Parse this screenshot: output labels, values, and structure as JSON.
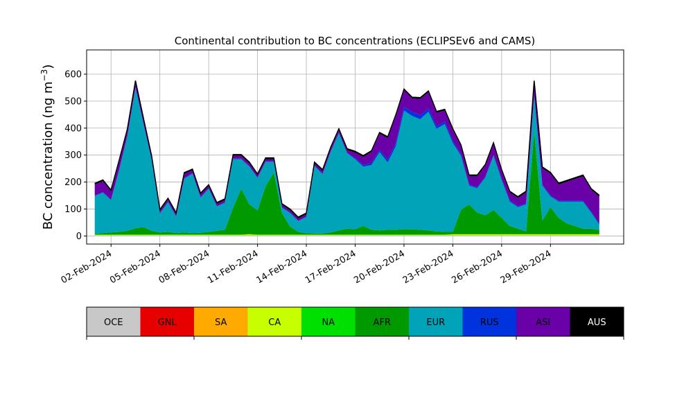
{
  "chart_data": {
    "type": "area",
    "stacked": true,
    "title": "Continental contribution to BC concentrations (ECLIPSEv6 and CAMS)",
    "ylabel_main": "BC concentration (ng m",
    "ylabel_sup": "−3",
    "ylabel_close": ")",
    "xlabel": "",
    "ylim": [
      -30,
      690
    ],
    "xlim": [
      "2024-01-31T12:00",
      "2024-03-04T12:00"
    ],
    "grid": true,
    "yticks": [
      0,
      100,
      200,
      300,
      400,
      500,
      600
    ],
    "ytick_labels": [
      "0",
      "100",
      "200",
      "300",
      "400",
      "500",
      "600"
    ],
    "xticks": [
      "2024-02-02",
      "2024-02-05",
      "2024-02-08",
      "2024-02-11",
      "2024-02-14",
      "2024-02-17",
      "2024-02-20",
      "2024-02-23",
      "2024-02-26",
      "2024-02-29"
    ],
    "xtick_labels": [
      "02-Feb-2024",
      "05-Feb-2024",
      "08-Feb-2024",
      "11-Feb-2024",
      "14-Feb-2024",
      "17-Feb-2024",
      "20-Feb-2024",
      "23-Feb-2024",
      "26-Feb-2024",
      "29-Feb-2024"
    ],
    "x": [
      "2024-02-01T00:00",
      "2024-02-01T12:00",
      "2024-02-02T00:00",
      "2024-02-02T12:00",
      "2024-02-03T00:00",
      "2024-02-03T12:00",
      "2024-02-04T00:00",
      "2024-02-04T12:00",
      "2024-02-05T00:00",
      "2024-02-05T12:00",
      "2024-02-06T00:00",
      "2024-02-06T12:00",
      "2024-02-07T00:00",
      "2024-02-07T12:00",
      "2024-02-08T00:00",
      "2024-02-08T12:00",
      "2024-02-09T00:00",
      "2024-02-09T12:00",
      "2024-02-10T00:00",
      "2024-02-10T12:00",
      "2024-02-11T00:00",
      "2024-02-11T12:00",
      "2024-02-12T00:00",
      "2024-02-12T12:00",
      "2024-02-13T00:00",
      "2024-02-13T12:00",
      "2024-02-14T00:00",
      "2024-02-14T12:00",
      "2024-02-15T00:00",
      "2024-02-15T12:00",
      "2024-02-16T00:00",
      "2024-02-16T12:00",
      "2024-02-17T00:00",
      "2024-02-17T12:00",
      "2024-02-18T00:00",
      "2024-02-18T12:00",
      "2024-02-19T00:00",
      "2024-02-19T12:00",
      "2024-02-20T00:00",
      "2024-02-20T12:00",
      "2024-02-21T00:00",
      "2024-02-21T12:00",
      "2024-02-22T00:00",
      "2024-02-22T12:00",
      "2024-02-23T00:00",
      "2024-02-23T12:00",
      "2024-02-24T00:00",
      "2024-02-24T12:00",
      "2024-02-25T00:00",
      "2024-02-25T12:00",
      "2024-02-26T00:00",
      "2024-02-26T12:00",
      "2024-02-27T00:00",
      "2024-02-27T12:00",
      "2024-02-28T00:00",
      "2024-02-28T12:00",
      "2024-02-29T00:00",
      "2024-02-29T12:00",
      "2024-03-01T00:00",
      "2024-03-01T12:00",
      "2024-03-02T00:00",
      "2024-03-02T12:00",
      "2024-03-03T00:00"
    ],
    "series": [
      {
        "name": "OCE",
        "color": "#c8c8c8",
        "values": [
          1,
          1,
          1,
          1,
          1,
          1,
          1,
          1,
          1,
          1,
          1,
          1,
          1,
          1,
          1,
          1,
          1,
          1,
          1,
          1,
          1,
          1,
          1,
          1,
          1,
          1,
          1,
          1,
          1,
          1,
          1,
          1,
          1,
          1,
          1,
          1,
          1,
          1,
          1,
          1,
          1,
          1,
          1,
          1,
          1,
          1,
          1,
          1,
          1,
          1,
          1,
          1,
          1,
          1,
          1,
          1,
          1,
          1,
          1,
          1,
          1,
          1,
          1
        ]
      },
      {
        "name": "GNL",
        "color": "#e60000",
        "values": [
          0,
          0,
          0,
          0,
          0,
          0,
          0,
          0,
          0,
          0,
          0,
          0,
          0,
          0,
          0,
          0,
          0,
          0,
          0,
          0,
          0,
          0,
          0,
          0,
          0,
          0,
          0,
          0,
          0,
          0,
          0,
          0,
          0,
          0,
          0,
          0,
          0,
          0,
          0,
          0,
          0,
          0,
          0,
          0,
          0,
          0,
          0,
          0,
          0,
          0,
          0,
          0,
          0,
          0,
          0,
          0,
          0,
          0,
          0,
          0,
          0,
          0,
          0
        ]
      },
      {
        "name": "SA",
        "color": "#ffaa00",
        "values": [
          1,
          1,
          1,
          1,
          1,
          1,
          1,
          1,
          1,
          1,
          1,
          1,
          1,
          1,
          1,
          1,
          1,
          1,
          1,
          2,
          1,
          1,
          1,
          1,
          1,
          1,
          1,
          1,
          1,
          1,
          1,
          1,
          1,
          1,
          1,
          1,
          1,
          1,
          1,
          1,
          1,
          1,
          1,
          1,
          2,
          2,
          2,
          2,
          2,
          2,
          2,
          2,
          2,
          2,
          2,
          2,
          2,
          2,
          2,
          2,
          2,
          2,
          2
        ]
      },
      {
        "name": "CA",
        "color": "#c8ff00",
        "values": [
          2,
          2,
          2,
          2,
          2,
          2,
          2,
          2,
          2,
          2,
          2,
          2,
          2,
          2,
          2,
          2,
          2,
          2,
          2,
          3,
          2,
          2,
          2,
          2,
          2,
          2,
          2,
          2,
          2,
          2,
          2,
          2,
          2,
          2,
          2,
          2,
          2,
          2,
          2,
          2,
          2,
          2,
          2,
          2,
          3,
          3,
          3,
          3,
          3,
          3,
          3,
          3,
          3,
          3,
          3,
          3,
          3,
          3,
          3,
          3,
          3,
          3,
          3
        ]
      },
      {
        "name": "NA",
        "color": "#00e000",
        "values": [
          1,
          1,
          1,
          1,
          1,
          1,
          1,
          1,
          1,
          1,
          1,
          1,
          1,
          1,
          1,
          1,
          1,
          1,
          1,
          1,
          1,
          1,
          1,
          1,
          1,
          1,
          1,
          1,
          1,
          1,
          1,
          1,
          1,
          1,
          1,
          1,
          1,
          1,
          1,
          1,
          1,
          1,
          1,
          1,
          1,
          1,
          1,
          1,
          1,
          1,
          1,
          1,
          1,
          1,
          1,
          1,
          1,
          1,
          1,
          1,
          1,
          1,
          1
        ]
      },
      {
        "name": "AFR",
        "color": "#009a00",
        "values": [
          3,
          6,
          8,
          10,
          14,
          24,
          28,
          14,
          8,
          10,
          6,
          8,
          6,
          7,
          10,
          14,
          18,
          100,
          170,
          110,
          90,
          180,
          230,
          80,
          30,
          10,
          5,
          4,
          4,
          8,
          16,
          22,
          20,
          32,
          18,
          16,
          18,
          18,
          20,
          20,
          18,
          16,
          12,
          10,
          8,
          90,
          110,
          80,
          70,
          90,
          60,
          30,
          20,
          10,
          380,
          50,
          100,
          60,
          40,
          30,
          20,
          20,
          15
        ]
      },
      {
        "name": "EUR",
        "color": "#00a3b8",
        "values": [
          140,
          150,
          120,
          230,
          350,
          520,
          380,
          260,
          70,
          110,
          60,
          200,
          220,
          130,
          160,
          90,
          100,
          180,
          110,
          140,
          120,
          90,
          40,
          20,
          50,
          40,
          60,
          250,
          220,
          300,
          360,
          280,
          260,
          220,
          240,
          290,
          250,
          310,
          440,
          420,
          410,
          440,
          380,
          400,
          330,
          200,
          70,
          90,
          140,
          200,
          140,
          90,
          80,
          100,
          130,
          130,
          40,
          60,
          80,
          90,
          100,
          60,
          20
        ]
      },
      {
        "name": "RUS",
        "color": "#0033dd",
        "values": [
          2,
          2,
          2,
          2,
          2,
          2,
          2,
          2,
          2,
          2,
          2,
          2,
          2,
          2,
          2,
          2,
          2,
          2,
          2,
          2,
          2,
          2,
          2,
          2,
          2,
          2,
          2,
          2,
          2,
          2,
          2,
          2,
          4,
          6,
          8,
          8,
          10,
          12,
          15,
          15,
          15,
          12,
          10,
          10,
          8,
          6,
          4,
          4,
          4,
          4,
          4,
          4,
          4,
          4,
          4,
          4,
          4,
          4,
          4,
          4,
          4,
          4,
          4
        ]
      },
      {
        "name": "ASI",
        "color": "#6a00a8",
        "values": [
          40,
          40,
          30,
          30,
          20,
          20,
          15,
          10,
          8,
          8,
          8,
          15,
          10,
          10,
          8,
          8,
          8,
          10,
          10,
          10,
          8,
          8,
          8,
          8,
          8,
          8,
          8,
          8,
          10,
          10,
          10,
          10,
          20,
          30,
          40,
          60,
          80,
          100,
          60,
          50,
          60,
          60,
          50,
          40,
          40,
          30,
          30,
          40,
          40,
          40,
          30,
          30,
          30,
          40,
          50,
          60,
          80,
          60,
          70,
          80,
          90,
          80,
          100
        ]
      },
      {
        "name": "AUS",
        "color": "#000000",
        "values": [
          5,
          5,
          5,
          5,
          5,
          5,
          5,
          5,
          5,
          5,
          5,
          5,
          5,
          5,
          5,
          5,
          5,
          5,
          5,
          5,
          5,
          5,
          5,
          5,
          5,
          5,
          5,
          5,
          5,
          5,
          5,
          5,
          5,
          5,
          5,
          5,
          5,
          5,
          5,
          5,
          5,
          5,
          5,
          5,
          5,
          5,
          5,
          5,
          5,
          5,
          5,
          5,
          5,
          5,
          5,
          5,
          5,
          5,
          5,
          5,
          5,
          5,
          5
        ]
      }
    ],
    "legend": {
      "placement": "bottom",
      "entries": [
        "OCE",
        "GNL",
        "SA",
        "CA",
        "NA",
        "AFR",
        "EUR",
        "RUS",
        "ASI",
        "AUS"
      ],
      "text_colors": [
        "#000000",
        "#000000",
        "#000000",
        "#000000",
        "#000000",
        "#000000",
        "#000000",
        "#000000",
        "#000000",
        "#ffffff"
      ]
    }
  }
}
